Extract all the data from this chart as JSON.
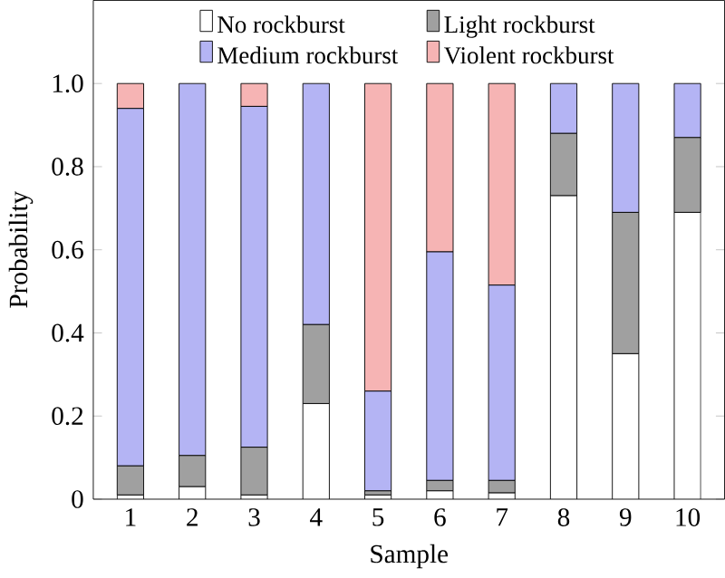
{
  "chart_data": {
    "type": "bar",
    "stacked": true,
    "xlabel": "Sample",
    "ylabel": "Probability",
    "categories": [
      "1",
      "2",
      "3",
      "4",
      "5",
      "6",
      "7",
      "8",
      "9",
      "10"
    ],
    "series": [
      {
        "name": "No rockburst",
        "color": "#ffffff",
        "values": [
          0.01,
          0.03,
          0.01,
          0.23,
          0.01,
          0.02,
          0.015,
          0.73,
          0.35,
          0.69
        ]
      },
      {
        "name": "Light rockburst",
        "color": "#a0a0a0",
        "values": [
          0.07,
          0.075,
          0.115,
          0.19,
          0.01,
          0.025,
          0.03,
          0.15,
          0.34,
          0.18
        ]
      },
      {
        "name": "Medium rockburst",
        "color": "#b4b4f4",
        "values": [
          0.86,
          0.895,
          0.82,
          0.58,
          0.24,
          0.55,
          0.47,
          0.12,
          0.31,
          0.13
        ]
      },
      {
        "name": "Violent rockburst",
        "color": "#f6b4b4",
        "values": [
          0.06,
          0,
          0.055,
          0,
          0.74,
          0.405,
          0.485,
          0,
          0,
          0
        ]
      }
    ],
    "ylim": [
      0,
      1.2
    ],
    "yticks": [
      0,
      0.2,
      0.4,
      0.6,
      0.8,
      {
        "value": 1,
        "label": "1.0"
      }
    ],
    "legend": "top",
    "grid": false
  }
}
